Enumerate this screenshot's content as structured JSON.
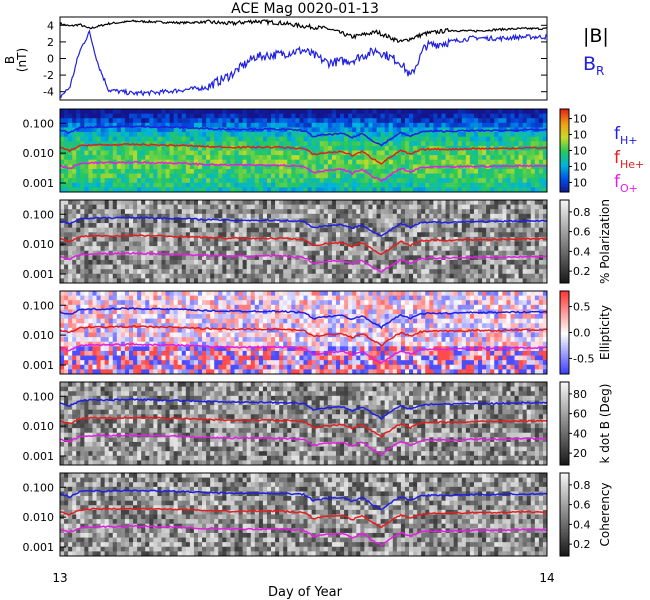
{
  "title": "ACE Mag 0020-01-13",
  "chart_data": {
    "type": "line",
    "title": "ACE Mag 0020-01-13",
    "xlabel": "Day of Year",
    "x_range": [
      13,
      14
    ],
    "x_ticks": [
      "13",
      "14"
    ],
    "top_panel": {
      "ylabel_line1": "B",
      "ylabel_line2": "(nT)",
      "y_ticks": [
        "4",
        "2",
        "0",
        "-2",
        "-4"
      ],
      "y_values": [
        4,
        2,
        0,
        -2,
        -4
      ],
      "ylim": [
        -5,
        5
      ],
      "legend": [
        {
          "label": "|B|",
          "color": "#000000"
        },
        {
          "label": "B",
          "sub": "R",
          "color": "#2020e0"
        }
      ],
      "series": [
        {
          "name": "|B|",
          "color": "#000000",
          "x": [
            0,
            0.02,
            0.04,
            0.06,
            0.1,
            0.15,
            0.2,
            0.25,
            0.3,
            0.35,
            0.4,
            0.45,
            0.5,
            0.55,
            0.6,
            0.65,
            0.7,
            0.75,
            0.8,
            0.85,
            0.9,
            0.95,
            1.0
          ],
          "y": [
            4.2,
            3.9,
            4.1,
            3.6,
            4.2,
            4.5,
            4.4,
            4.3,
            4.4,
            4.2,
            4.5,
            4.3,
            3.9,
            3.6,
            2.6,
            3.2,
            2.0,
            3.0,
            3.4,
            3.3,
            3.5,
            3.6,
            3.6
          ]
        },
        {
          "name": "B_R",
          "color": "#2020e0",
          "x": [
            0,
            0.02,
            0.04,
            0.06,
            0.08,
            0.1,
            0.15,
            0.2,
            0.25,
            0.3,
            0.35,
            0.4,
            0.45,
            0.5,
            0.55,
            0.6,
            0.65,
            0.7,
            0.72,
            0.75,
            0.8,
            0.85,
            0.9,
            0.95,
            1.0
          ],
          "y": [
            -4.6,
            -3.5,
            0.8,
            3.2,
            -1.0,
            -3.8,
            -4.2,
            -4.1,
            -3.8,
            -3.5,
            -2.0,
            0.2,
            0.5,
            1.0,
            -0.5,
            -0.2,
            1.0,
            -0.5,
            -2.2,
            1.5,
            2.0,
            2.5,
            2.4,
            2.6,
            2.6
          ]
        }
      ]
    },
    "spectral_panels": [
      {
        "name": "power",
        "colorbar_type": "rainbow",
        "colorbar_label": "",
        "cb_ticks": [
          "10",
          "10",
          "10",
          "10",
          "10"
        ],
        "side_labels": [
          {
            "label": "f",
            "sub": "H+",
            "color": "#2020e0"
          },
          {
            "label": "f",
            "sub": "He+",
            "color": "#e02020"
          },
          {
            "label": "f",
            "sub": "O+",
            "color": "#e020e0"
          }
        ]
      },
      {
        "name": "polarization",
        "colorbar_type": "gray",
        "colorbar_label": "% Polarization",
        "cb_ticks": [
          "0.8",
          "0.6",
          "0.4",
          "0.2"
        ]
      },
      {
        "name": "ellipticity",
        "colorbar_type": "bwr",
        "colorbar_label": "Ellipticity",
        "cb_ticks": [
          "0.5",
          "0.0",
          "-0.5"
        ]
      },
      {
        "name": "k-dot-b",
        "colorbar_type": "gray",
        "colorbar_label": "k dot B (Deg)",
        "cb_ticks": [
          "80",
          "60",
          "40",
          "20"
        ]
      },
      {
        "name": "coherency",
        "colorbar_type": "gray",
        "colorbar_label": "Coherency",
        "cb_ticks": [
          "0.8",
          "0.6",
          "0.4",
          "0.2"
        ]
      }
    ],
    "spectral_y_ticks": [
      "0.100",
      "0.010",
      "0.001"
    ],
    "spectral_y_values": [
      0.1,
      0.01,
      0.001
    ],
    "spectral_ylim": [
      0.0005,
      0.3
    ],
    "gyro_lines": [
      {
        "name": "f_H+",
        "color": "#2020e0",
        "base": 0.06
      },
      {
        "name": "f_He+",
        "color": "#e02020",
        "base": 0.015
      },
      {
        "name": "f_O+",
        "color": "#e020e0",
        "base": 0.0038
      }
    ],
    "gyro_profile": {
      "x": [
        0,
        0.02,
        0.04,
        0.06,
        0.1,
        0.15,
        0.2,
        0.25,
        0.3,
        0.35,
        0.4,
        0.45,
        0.5,
        0.52,
        0.55,
        0.58,
        0.6,
        0.62,
        0.64,
        0.66,
        0.68,
        0.7,
        0.72,
        0.74,
        0.76,
        0.8,
        0.85,
        0.9,
        0.95,
        1.0
      ],
      "y": [
        1.0,
        0.8,
        1.15,
        1.25,
        1.25,
        1.3,
        1.25,
        1.2,
        1.1,
        1.05,
        1.05,
        1.05,
        0.95,
        0.6,
        0.7,
        0.75,
        0.55,
        0.75,
        0.45,
        0.3,
        0.5,
        0.8,
        0.6,
        0.85,
        0.9,
        0.9,
        0.95,
        0.95,
        1.0,
        1.0
      ]
    }
  }
}
